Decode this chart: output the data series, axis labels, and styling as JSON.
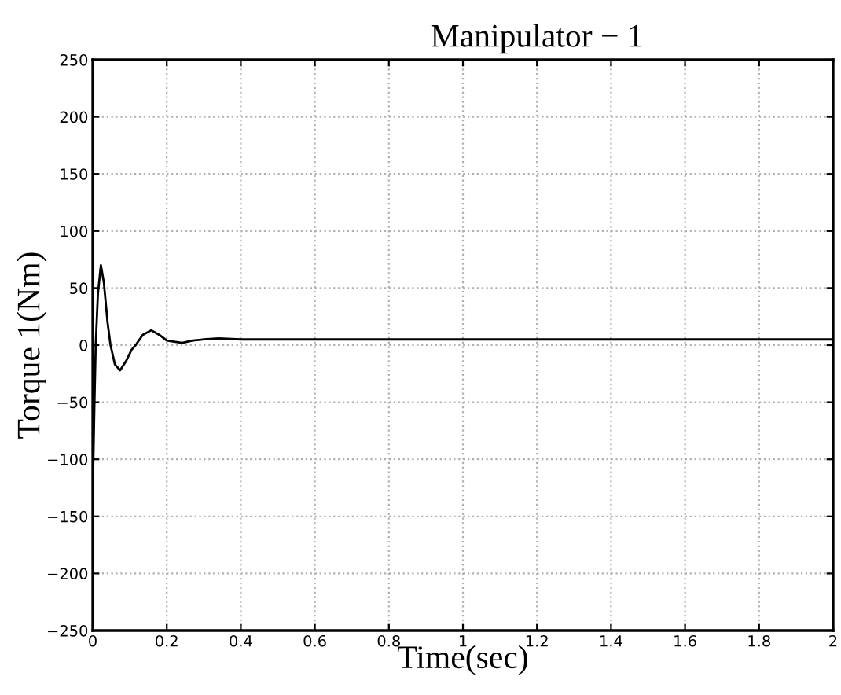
{
  "chart_data": {
    "type": "line",
    "title": "Manipulator − 1",
    "xlabel": "Time(sec)",
    "ylabel": "Torque 1(Nm)",
    "series": [
      {
        "color": "#000000",
        "x": [
          0,
          0.004,
          0.008,
          0.014,
          0.022,
          0.03,
          0.04,
          0.048,
          0.06,
          0.074,
          0.09,
          0.105,
          0.116,
          0.135,
          0.158,
          0.18,
          0.2,
          0.22,
          0.242,
          0.27,
          0.3,
          0.34,
          0.4,
          0.5,
          0.7,
          1.0,
          1.5,
          2.0
        ],
        "values": [
          -130,
          -60,
          0,
          45,
          70,
          55,
          20,
          0,
          -17,
          -22,
          -14,
          -4,
          0,
          9,
          13,
          9,
          4,
          3,
          2,
          4,
          5,
          6,
          5,
          5,
          5,
          5,
          5,
          5
        ]
      }
    ],
    "xlim": [
      0,
      2
    ],
    "ylim": [
      -250,
      250
    ],
    "xticks": [
      0,
      0.2,
      0.4,
      0.6,
      0.8,
      1,
      1.2,
      1.4,
      1.6,
      1.8,
      2
    ],
    "yticks": [
      {
        "value": -250,
        "label": "−250"
      },
      {
        "value": -200,
        "label": "−200"
      },
      {
        "value": -150,
        "label": "−150"
      },
      {
        "value": -100,
        "label": "−100"
      },
      {
        "value": -50,
        "label": "−50"
      },
      0,
      50,
      100,
      150,
      200,
      250
    ],
    "grid": true,
    "line_style": "solid",
    "marker": "none",
    "legend": false
  }
}
